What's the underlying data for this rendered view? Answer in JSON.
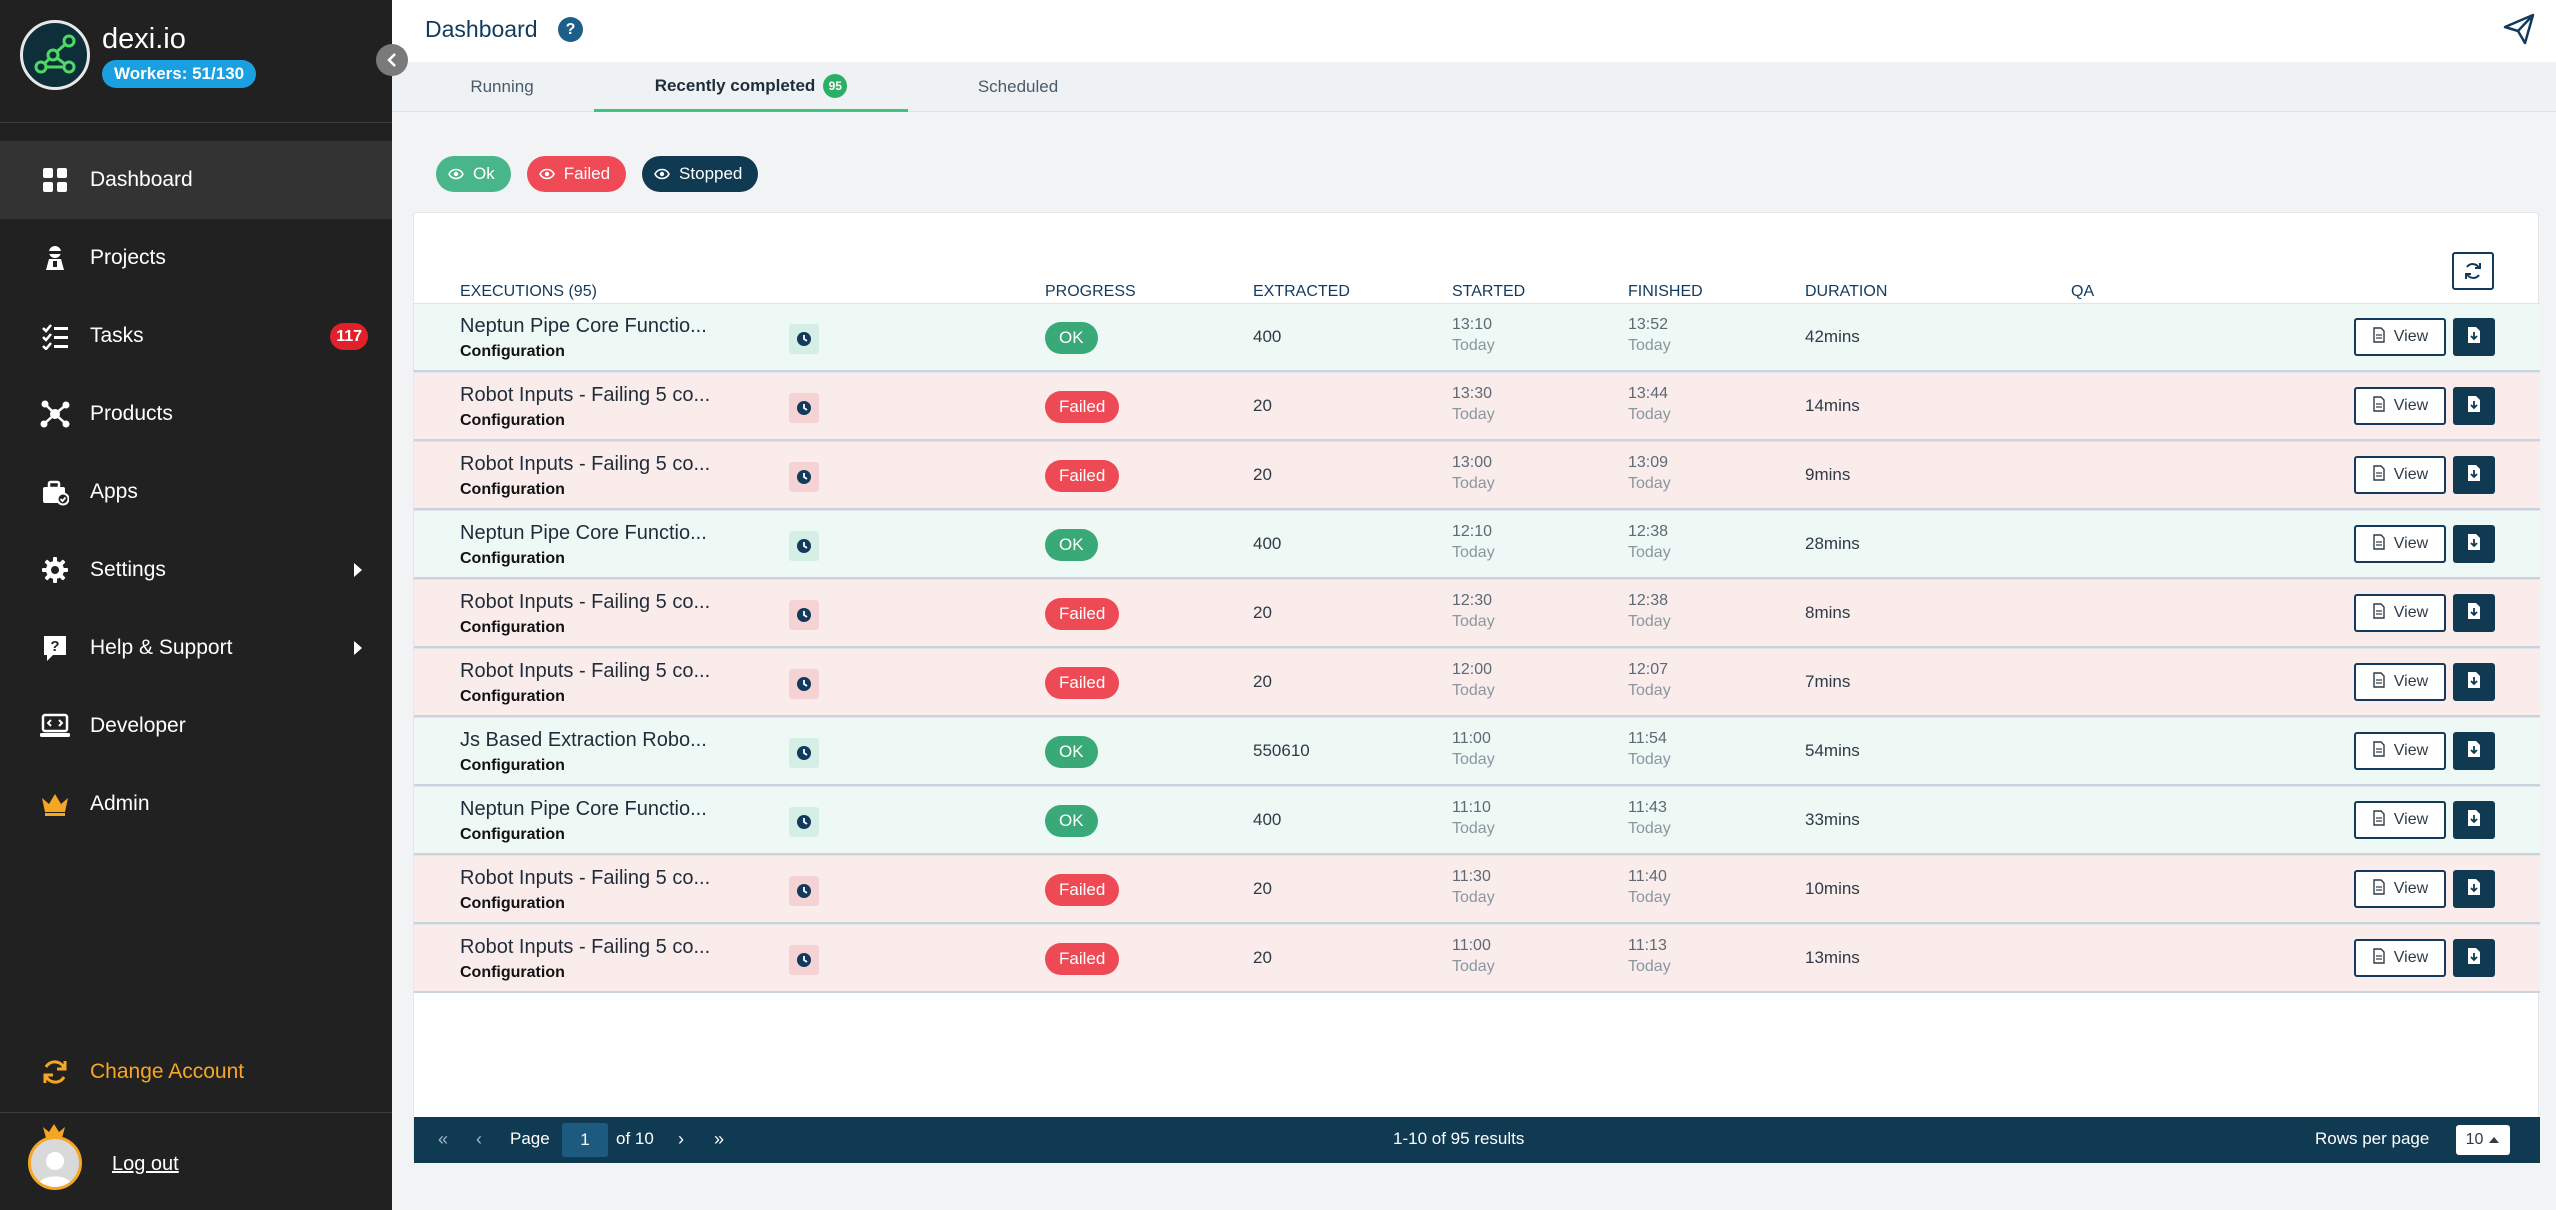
{
  "app": {
    "name": "dexi.io",
    "workers": "Workers: 51/130"
  },
  "sidebar": {
    "items": [
      {
        "label": "Dashboard",
        "icon": "grid-icon"
      },
      {
        "label": "Projects",
        "icon": "robot-icon"
      },
      {
        "label": "Tasks",
        "icon": "checklist-icon",
        "badge": "117"
      },
      {
        "label": "Products",
        "icon": "network-icon"
      },
      {
        "label": "Apps",
        "icon": "briefcase-icon"
      },
      {
        "label": "Settings",
        "icon": "gear-icon"
      },
      {
        "label": "Help & Support",
        "icon": "help-icon"
      },
      {
        "label": "Developer",
        "icon": "code-icon"
      },
      {
        "label": "Admin",
        "icon": "crown-icon"
      }
    ],
    "change_account": "Change Account",
    "logout": "Log out"
  },
  "header": {
    "title": "Dashboard",
    "help": "?"
  },
  "tabs": [
    {
      "label": "Running"
    },
    {
      "label": "Recently completed",
      "count": "95"
    },
    {
      "label": "Scheduled"
    }
  ],
  "filters": {
    "ok": "Ok",
    "failed": "Failed",
    "stopped": "Stopped"
  },
  "table": {
    "columns": {
      "executions": "EXECUTIONS (95)",
      "progress": "PROGRESS",
      "extracted": "EXTRACTED",
      "started": "STARTED",
      "finished": "FINISHED",
      "duration": "DURATION",
      "qa": "QA"
    },
    "view_label": "View",
    "rows": [
      {
        "name": "Neptun Pipe Core Functio...",
        "sub": "Configuration",
        "status": "OK",
        "extracted": "400",
        "started": "13:10",
        "started_day": "Today",
        "finished": "13:52",
        "finished_day": "Today",
        "duration": "42mins"
      },
      {
        "name": "Robot Inputs - Failing 5 co...",
        "sub": "Configuration",
        "status": "Failed",
        "extracted": "20",
        "started": "13:30",
        "started_day": "Today",
        "finished": "13:44",
        "finished_day": "Today",
        "duration": "14mins"
      },
      {
        "name": "Robot Inputs - Failing 5 co...",
        "sub": "Configuration",
        "status": "Failed",
        "extracted": "20",
        "started": "13:00",
        "started_day": "Today",
        "finished": "13:09",
        "finished_day": "Today",
        "duration": "9mins"
      },
      {
        "name": "Neptun Pipe Core Functio...",
        "sub": "Configuration",
        "status": "OK",
        "extracted": "400",
        "started": "12:10",
        "started_day": "Today",
        "finished": "12:38",
        "finished_day": "Today",
        "duration": "28mins"
      },
      {
        "name": "Robot Inputs - Failing 5 co...",
        "sub": "Configuration",
        "status": "Failed",
        "extracted": "20",
        "started": "12:30",
        "started_day": "Today",
        "finished": "12:38",
        "finished_day": "Today",
        "duration": "8mins"
      },
      {
        "name": "Robot Inputs - Failing 5 co...",
        "sub": "Configuration",
        "status": "Failed",
        "extracted": "20",
        "started": "12:00",
        "started_day": "Today",
        "finished": "12:07",
        "finished_day": "Today",
        "duration": "7mins"
      },
      {
        "name": "Js Based Extraction Robo...",
        "sub": "Configuration",
        "status": "OK",
        "extracted": "550610",
        "started": "11:00",
        "started_day": "Today",
        "finished": "11:54",
        "finished_day": "Today",
        "duration": "54mins"
      },
      {
        "name": "Neptun Pipe Core Functio...",
        "sub": "Configuration",
        "status": "OK",
        "extracted": "400",
        "started": "11:10",
        "started_day": "Today",
        "finished": "11:43",
        "finished_day": "Today",
        "duration": "33mins"
      },
      {
        "name": "Robot Inputs - Failing 5 co...",
        "sub": "Configuration",
        "status": "Failed",
        "extracted": "20",
        "started": "11:30",
        "started_day": "Today",
        "finished": "11:40",
        "finished_day": "Today",
        "duration": "10mins"
      },
      {
        "name": "Robot Inputs - Failing 5 co...",
        "sub": "Configuration",
        "status": "Failed",
        "extracted": "20",
        "started": "11:00",
        "started_day": "Today",
        "finished": "11:13",
        "finished_day": "Today",
        "duration": "13mins"
      }
    ]
  },
  "pagination": {
    "first": "«",
    "prev": "‹",
    "next": "›",
    "last": "»",
    "page_label": "Page",
    "page": "1",
    "of": "of 10",
    "results": "1-10 of 95 results",
    "rows_per_page_label": "Rows per page",
    "rows_per_page": "10"
  },
  "colors": {
    "sidebar": "#212121",
    "accent_green": "#3aa978",
    "accent_red": "#ee4a55",
    "navy": "#0f3a52",
    "workers_badge": "#1a9fe0"
  }
}
